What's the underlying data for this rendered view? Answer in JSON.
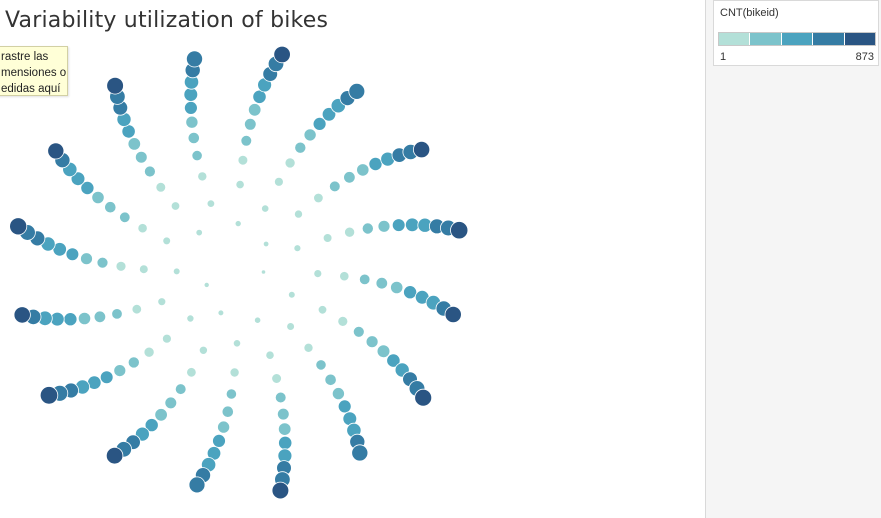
{
  "title": "Variability utilization of bikes",
  "drop_hint": {
    "lines": [
      "rastre las",
      "mensiones o",
      "edidas aquí"
    ]
  },
  "legend": {
    "title": "CNT(bikeid)",
    "min_label": "1",
    "max_label": "873",
    "steps": [
      "#b3e0d8",
      "#7cc3cb",
      "#4ba3bf",
      "#357ca4",
      "#2a5583"
    ]
  },
  "chart_data": {
    "type": "packed-bubble",
    "title": "Variability utilization of bikes",
    "measure": "CNT(bikeid)",
    "color_range": [
      1,
      873
    ],
    "palette": [
      "#b3e0d8",
      "#7cc3cb",
      "#4ba3bf",
      "#357ca4",
      "#2a5583"
    ],
    "values": [
      873,
      840,
      812,
      795,
      780,
      768,
      755,
      742,
      730,
      721,
      712,
      704,
      696,
      688,
      680,
      672,
      665,
      658,
      651,
      644,
      637,
      630,
      624,
      618,
      612,
      606,
      600,
      594,
      588,
      582,
      576,
      570,
      565,
      560,
      555,
      550,
      545,
      540,
      535,
      530,
      525,
      520,
      515,
      510,
      505,
      500,
      496,
      492,
      488,
      484,
      480,
      476,
      472,
      468,
      464,
      460,
      456,
      452,
      448,
      444,
      440,
      436,
      432,
      428,
      424,
      420,
      416,
      412,
      408,
      404,
      400,
      396,
      392,
      388,
      384,
      380,
      376,
      372,
      368,
      364,
      360,
      356,
      352,
      348,
      344,
      340,
      336,
      332,
      328,
      324,
      320,
      316,
      312,
      308,
      304,
      300,
      296,
      292,
      288,
      284,
      280,
      276,
      272,
      268,
      264,
      260,
      256,
      252,
      248,
      244,
      240,
      236,
      232,
      228,
      224,
      220,
      216,
      212,
      208,
      204,
      200,
      196,
      192,
      188,
      184,
      180,
      176,
      172,
      168,
      164,
      160,
      156,
      152,
      148,
      144,
      140,
      136,
      132,
      128,
      124,
      120,
      116,
      112,
      108,
      104,
      100,
      96,
      92,
      88,
      84,
      80,
      76,
      72,
      68,
      64,
      60,
      56,
      52,
      48,
      44,
      40,
      36,
      32,
      28,
      24,
      20,
      16,
      12,
      8,
      4,
      1
    ]
  }
}
